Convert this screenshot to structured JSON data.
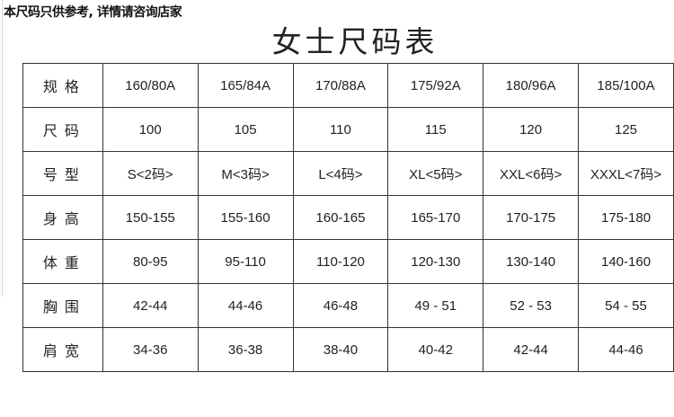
{
  "note": "本尺码只供参考, 详情请咨询店家",
  "title": "女士尺码表",
  "rows": [
    {
      "label": "规格",
      "values": [
        "160/80A",
        "165/84A",
        "170/88A",
        "175/92A",
        "180/96A",
        "185/100A"
      ]
    },
    {
      "label": "尺码",
      "values": [
        "100",
        "105",
        "110",
        "115",
        "120",
        "125"
      ]
    },
    {
      "label": "号型",
      "values": [
        "S<2码>",
        "M<3码>",
        "L<4码>",
        "XL<5码>",
        "XXL<6码>",
        "XXXL<7码>"
      ]
    },
    {
      "label": "身高",
      "values": [
        "150-155",
        "155-160",
        "160-165",
        "165-170",
        "170-175",
        "175-180"
      ]
    },
    {
      "label": "体重",
      "values": [
        "80-95",
        "95-110",
        "110-120",
        "120-130",
        "130-140",
        "140-160"
      ]
    },
    {
      "label": "胸围",
      "values": [
        "42-44",
        "44-46",
        "46-48",
        "49 - 51",
        "52 - 53",
        "54 - 55"
      ]
    },
    {
      "label": "肩宽",
      "values": [
        "34-36",
        "36-38",
        "38-40",
        "40-42",
        "42-44",
        "44-46"
      ]
    }
  ]
}
